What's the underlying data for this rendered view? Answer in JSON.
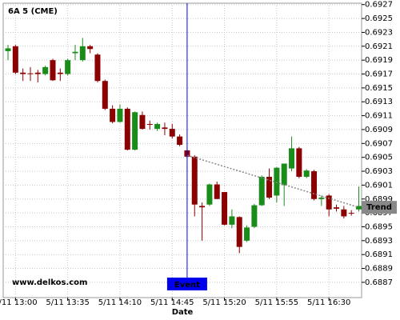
{
  "chart_data": {
    "type": "candlestick",
    "title": "6A 5 (CME)",
    "x_label": "Date",
    "watermark": "www.delkos.com",
    "categories": [
      null,
      "5/11 13:00",
      null,
      null,
      null,
      null,
      null,
      null,
      "5/11 13:35",
      null,
      null,
      null,
      null,
      null,
      null,
      "5/11 14:10",
      null,
      null,
      null,
      null,
      null,
      null,
      "5/11 14:45",
      null,
      null,
      null,
      null,
      null,
      null,
      "5/11 15:20",
      null,
      null,
      null,
      null,
      null,
      null,
      "5/11 15:55",
      null,
      null,
      null,
      null,
      null,
      null,
      "5/11 16:30",
      null,
      null,
      null,
      null
    ],
    "open": [
      0.69203,
      0.6921,
      0.69172,
      0.69171,
      0.69172,
      0.6917,
      0.6919,
      0.69172,
      0.6917,
      0.692,
      0.6919,
      0.6921,
      0.69198,
      0.6916,
      0.6912,
      0.69101,
      0.6912,
      0.69061,
      0.69111,
      0.69098,
      0.69091,
      0.69093,
      0.69091,
      0.6908,
      0.6906,
      0.69051,
      0.6898,
      0.68982,
      0.69011,
      0.69,
      0.68953,
      0.68964,
      0.6893,
      0.6895,
      0.68981,
      0.69022,
      0.68995,
      0.6901,
      0.69034,
      0.69063,
      0.69022,
      0.6903,
      0.6899,
      0.68995,
      0.68978,
      0.68975,
      0.6897,
      0.68975
    ],
    "high": [
      0.69212,
      0.69212,
      0.69178,
      0.6918,
      0.69176,
      0.69182,
      0.69192,
      0.69178,
      0.69192,
      0.69212,
      0.69222,
      0.69212,
      0.692,
      0.69162,
      0.69125,
      0.69126,
      0.69122,
      0.69116,
      0.69116,
      0.69103,
      0.691,
      0.691,
      0.69098,
      0.69083,
      0.69062,
      0.69053,
      0.68985,
      0.69012,
      0.69015,
      0.69,
      0.68975,
      0.68965,
      0.68952,
      0.68983,
      0.69024,
      0.69034,
      0.69036,
      0.69041,
      0.6908,
      0.69065,
      0.69033,
      0.69032,
      0.68995,
      0.68997,
      0.68982,
      0.6898,
      0.68974,
      0.69008
    ],
    "low": [
      0.6919,
      0.6917,
      0.6916,
      0.6916,
      0.69158,
      0.69168,
      0.6916,
      0.6916,
      0.69168,
      0.6919,
      0.69188,
      0.692,
      0.69158,
      0.69118,
      0.69099,
      0.691,
      0.6906,
      0.6906,
      0.6909,
      0.6909,
      0.69088,
      0.69082,
      0.69077,
      0.69066,
      0.6905,
      0.68965,
      0.6893,
      0.6898,
      0.6899,
      0.68952,
      0.68948,
      0.68912,
      0.68928,
      0.68948,
      0.6898,
      0.6899,
      0.68985,
      0.6898,
      0.6903,
      0.6902,
      0.6902,
      0.68988,
      0.6898,
      0.68965,
      0.68972,
      0.68962,
      0.68966,
      0.68972
    ],
    "close": [
      0.69207,
      0.69172,
      0.6917,
      0.6917,
      0.6917,
      0.6918,
      0.69161,
      0.6917,
      0.6919,
      0.69202,
      0.6921,
      0.69206,
      0.6916,
      0.6912,
      0.69101,
      0.6912,
      0.69061,
      0.69115,
      0.69091,
      0.69097,
      0.69098,
      0.69091,
      0.6908,
      0.69068,
      0.69051,
      0.68982,
      0.68978,
      0.69011,
      0.6899,
      0.68953,
      0.68965,
      0.68921,
      0.68949,
      0.68981,
      0.69022,
      0.68992,
      0.69035,
      0.69041,
      0.69063,
      0.69022,
      0.69031,
      0.6899,
      0.68992,
      0.68975,
      0.68976,
      0.68965,
      0.68969,
      0.6898
    ],
    "up_color": "#1a8c1a",
    "down_color": "#8b0000",
    "ylim": [
      0.68848,
      0.69272
    ],
    "yticks": [
      0.6927,
      0.6925,
      0.6923,
      0.6921,
      0.6919,
      0.6917,
      0.6915,
      0.6913,
      0.6911,
      0.6909,
      0.6907,
      0.6905,
      0.6903,
      0.6901,
      0.6899,
      0.6897,
      0.6895,
      0.6893,
      0.6891,
      0.6889,
      0.6887
    ],
    "grid": true,
    "event": {
      "label": "Event",
      "category_index": 24,
      "color": "#0000ee"
    },
    "trend": {
      "label": "Trend",
      "start": [
        24,
        0.69053
      ],
      "end": [
        47,
        0.68978
      ],
      "color": "#888888"
    }
  }
}
